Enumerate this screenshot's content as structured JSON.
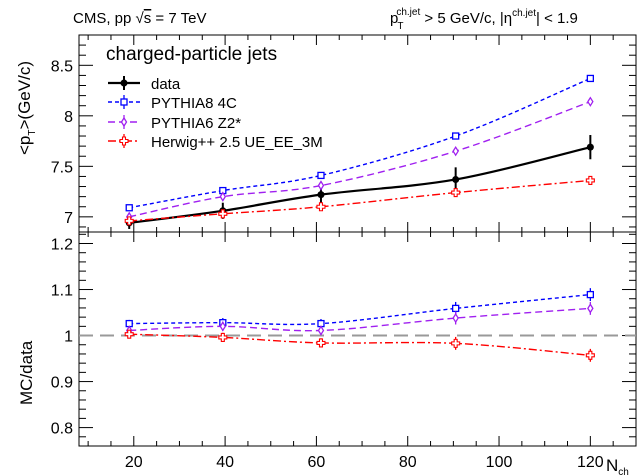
{
  "header": {
    "left": {
      "prefix": "CMS, pp ",
      "sqrt": "√",
      "s": "s",
      "rest": " = 7 TeV"
    },
    "right": {
      "p": "p",
      "p_sub": "T",
      "p_sup": "ch.jet",
      "mid": " > 5 GeV/c, |η",
      "eta_sup": "ch.jet",
      "end": "| < 1.9"
    }
  },
  "chart_data": [
    {
      "type": "line",
      "panel": "top",
      "ylabel": {
        "open": "<p",
        "sub": "T",
        "close": ">(GeV/c)"
      },
      "ylim": [
        6.85,
        8.8
      ],
      "xlim": [
        8,
        130
      ],
      "yticks": [
        7,
        7.5,
        8,
        8.5
      ],
      "yticklabels": [
        "7",
        "7.5",
        "8",
        "8.5"
      ],
      "legend": {
        "title": "charged-particle jets",
        "placement": "top-left",
        "entries": [
          "data",
          "PYTHIA8 4C",
          "PYTHIA6 Z2*",
          "Herwig++ 2.5  UE_EE_3M"
        ]
      },
      "x": [
        19,
        39.5,
        61,
        90.5,
        120
      ],
      "series": [
        {
          "name": "data",
          "color": "#000000",
          "marker": "filled-circle",
          "values": [
            6.94,
            7.06,
            7.22,
            7.37,
            7.69
          ],
          "errors": [
            0.06,
            0.08,
            0.08,
            0.12,
            0.12
          ]
        },
        {
          "name": "PYTHIA8 4C",
          "color": "#0000ff",
          "marker": "open-square",
          "values": [
            7.09,
            7.26,
            7.41,
            7.8,
            8.37
          ],
          "errors": [
            0,
            0,
            0,
            0,
            0
          ]
        },
        {
          "name": "PYTHIA6 Z2*",
          "color": "#a020f0",
          "marker": "open-diamond",
          "values": [
            7.0,
            7.2,
            7.31,
            7.65,
            8.14
          ],
          "errors": [
            0,
            0,
            0,
            0,
            0
          ]
        },
        {
          "name": "Herwig++ 2.5  UE_EE_3M",
          "color": "#ff0000",
          "marker": "open-cross",
          "values": [
            6.96,
            7.03,
            7.1,
            7.24,
            7.36
          ],
          "errors": [
            0.02,
            0.02,
            0.02,
            0.02,
            0.02
          ]
        }
      ]
    },
    {
      "type": "line",
      "panel": "bottom",
      "ylabel": "MC/data",
      "xlabel": {
        "main": "N",
        "sub": "ch"
      },
      "ylim": [
        0.76,
        1.225
      ],
      "xlim": [
        8,
        130
      ],
      "xticks": [
        20,
        40,
        60,
        80,
        100,
        120
      ],
      "xticklabels": [
        "20",
        "40",
        "60",
        "80",
        "100",
        "120"
      ],
      "yticks": [
        0.8,
        0.9,
        1,
        1.1,
        1.2
      ],
      "yticklabels": [
        "0.8",
        "0.9",
        "1",
        "1.1",
        "1.2"
      ],
      "reference_line": 1.0,
      "x": [
        19,
        39.5,
        61,
        90.5,
        120
      ],
      "series": [
        {
          "name": "PYTHIA8 4C",
          "color": "#0000ff",
          "marker": "open-square",
          "values": [
            1.026,
            1.028,
            1.026,
            1.059,
            1.089
          ],
          "errors": [
            0.008,
            0.01,
            0.01,
            0.014,
            0.014
          ]
        },
        {
          "name": "PYTHIA6 Z2*",
          "color": "#a020f0",
          "marker": "open-diamond",
          "values": [
            1.011,
            1.02,
            1.011,
            1.038,
            1.059
          ],
          "errors": [
            0.008,
            0.01,
            0.01,
            0.014,
            0.014
          ]
        },
        {
          "name": "Herwig++ 2.5  UE_EE_3M",
          "color": "#ff0000",
          "marker": "open-cross",
          "values": [
            1.003,
            0.996,
            0.984,
            0.983,
            0.957
          ],
          "errors": [
            0.008,
            0.01,
            0.01,
            0.014,
            0.014
          ]
        }
      ]
    }
  ]
}
